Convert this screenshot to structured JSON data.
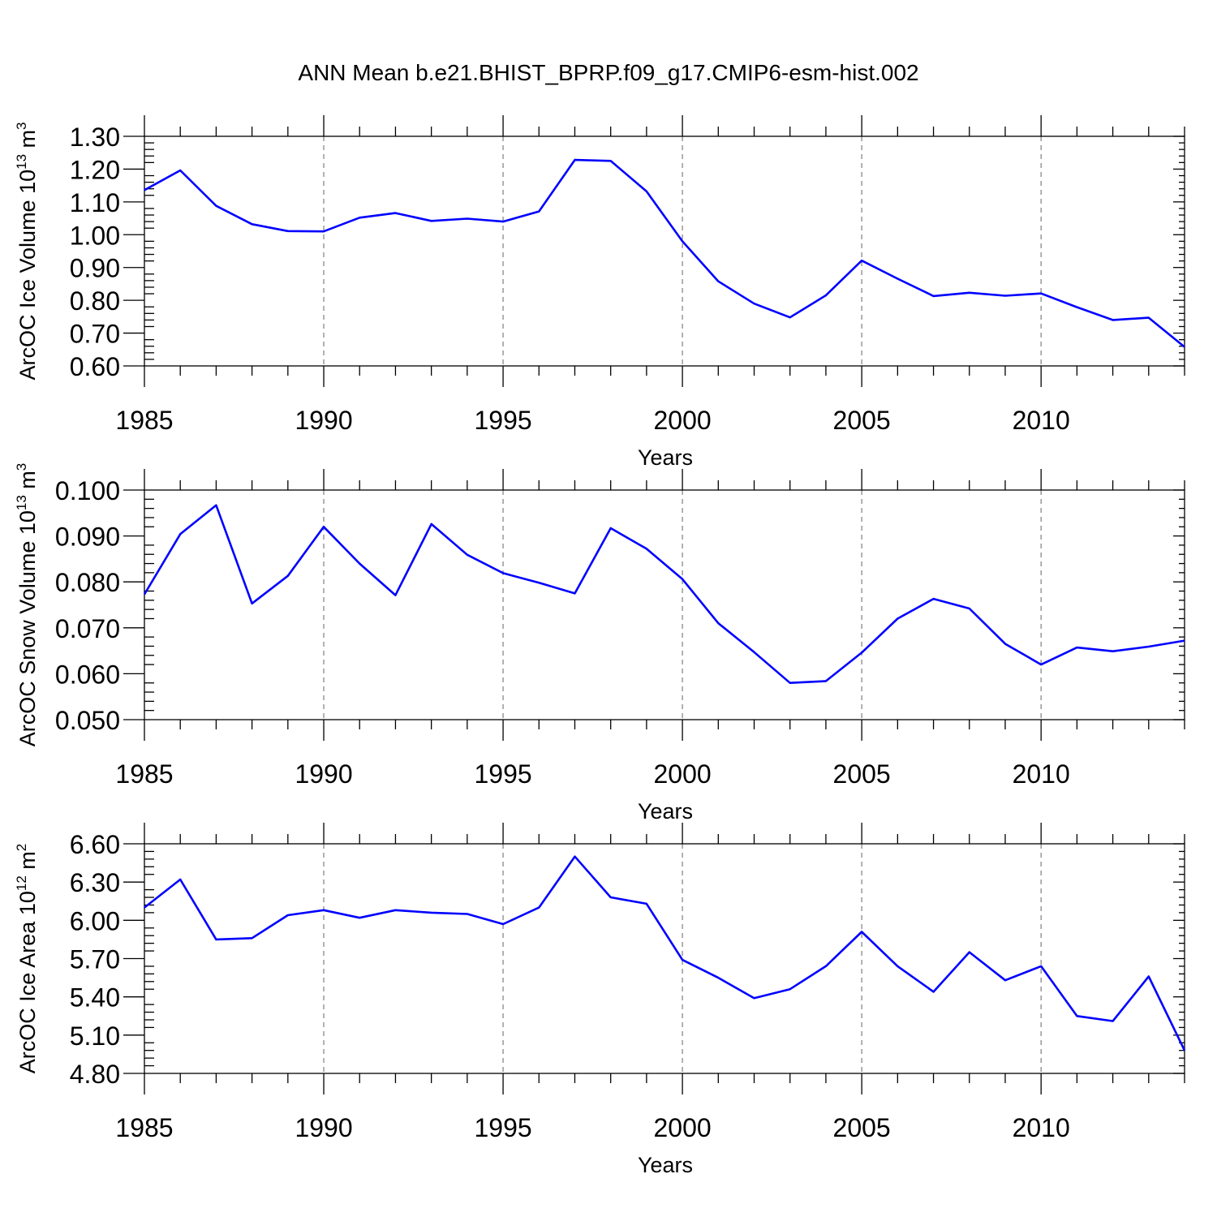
{
  "title": "ANN Mean b.e21.BHIST_BPRP.f09_g17.CMIP6-esm-hist.002",
  "colors": {
    "series": "#0000ff",
    "grid": "#888888",
    "axes": "#000000"
  },
  "chart_data": [
    {
      "type": "line",
      "xlabel": "Years",
      "ylabel": "ArcOC Ice Volume 10",
      "ylabel_exponent": "13",
      "ylabel_unit": " m",
      "ylabel_unit_exponent": "3",
      "xlim": [
        1985,
        2014
      ],
      "ylim": [
        0.6,
        1.3
      ],
      "xticks": [
        1985,
        1990,
        1995,
        2000,
        2005,
        2010
      ],
      "yticks": [
        "0.60",
        "0.70",
        "0.80",
        "0.90",
        "1.00",
        "1.10",
        "1.20",
        "1.30"
      ],
      "grid": "vertical dashed at major x ticks",
      "x": [
        1985,
        1986,
        1987,
        1988,
        1989,
        1990,
        1991,
        1992,
        1993,
        1994,
        1995,
        1996,
        1997,
        1998,
        1999,
        2000,
        2001,
        2002,
        2003,
        2004,
        2005,
        2006,
        2007,
        2008,
        2009,
        2010,
        2011,
        2012,
        2013,
        2014
      ],
      "values": [
        1.136,
        1.196,
        1.088,
        1.032,
        1.011,
        1.01,
        1.052,
        1.066,
        1.042,
        1.049,
        1.04,
        1.071,
        1.228,
        1.225,
        1.132,
        0.98,
        0.858,
        0.79,
        0.748,
        0.815,
        0.921,
        0.866,
        0.813,
        0.823,
        0.814,
        0.821,
        0.779,
        0.74,
        0.747,
        0.658
      ]
    },
    {
      "type": "line",
      "xlabel": "Years",
      "ylabel": "ArcOC Snow Volume 10",
      "ylabel_exponent": "13",
      "ylabel_unit": " m",
      "ylabel_unit_exponent": "3",
      "xlim": [
        1985,
        2014
      ],
      "ylim": [
        0.05,
        0.1
      ],
      "xticks": [
        1985,
        1990,
        1995,
        2000,
        2005,
        2010
      ],
      "yticks": [
        "0.050",
        "0.060",
        "0.070",
        "0.080",
        "0.090",
        "0.100"
      ],
      "grid": "vertical dashed at major x ticks",
      "x": [
        1985,
        1986,
        1987,
        1988,
        1989,
        1990,
        1991,
        1992,
        1993,
        1994,
        1995,
        1996,
        1997,
        1998,
        1999,
        2000,
        2001,
        2002,
        2003,
        2004,
        2005,
        2006,
        2007,
        2008,
        2009,
        2010,
        2011,
        2012,
        2013,
        2014
      ],
      "values": [
        0.0773,
        0.0904,
        0.0967,
        0.0753,
        0.0813,
        0.092,
        0.084,
        0.0771,
        0.0926,
        0.0859,
        0.0819,
        0.0798,
        0.0775,
        0.0917,
        0.0872,
        0.0806,
        0.071,
        0.0647,
        0.058,
        0.0584,
        0.0646,
        0.072,
        0.0763,
        0.0742,
        0.0665,
        0.062,
        0.0657,
        0.0649,
        0.0659,
        0.0672
      ]
    },
    {
      "type": "line",
      "xlabel": "Years",
      "ylabel": "ArcOC Ice Area 10",
      "ylabel_exponent": "12",
      "ylabel_unit": " m",
      "ylabel_unit_exponent": "2",
      "xlim": [
        1985,
        2014
      ],
      "ylim": [
        4.8,
        6.6
      ],
      "xticks": [
        1985,
        1990,
        1995,
        2000,
        2005,
        2010
      ],
      "yticks": [
        "4.80",
        "5.10",
        "5.40",
        "5.70",
        "6.00",
        "6.30",
        "6.60"
      ],
      "grid": "vertical dashed at major x ticks",
      "x": [
        1985,
        1986,
        1987,
        1988,
        1989,
        1990,
        1991,
        1992,
        1993,
        1994,
        1995,
        1996,
        1997,
        1998,
        1999,
        2000,
        2001,
        2002,
        2003,
        2004,
        2005,
        2006,
        2007,
        2008,
        2009,
        2010,
        2011,
        2012,
        2013,
        2014
      ],
      "values": [
        6.1,
        6.32,
        5.85,
        5.86,
        6.04,
        6.08,
        6.02,
        6.08,
        6.06,
        6.05,
        5.97,
        6.1,
        6.5,
        6.18,
        6.13,
        5.69,
        5.55,
        5.39,
        5.46,
        5.64,
        5.91,
        5.64,
        5.44,
        5.75,
        5.53,
        5.64,
        5.25,
        5.21,
        5.56,
        4.98
      ]
    }
  ]
}
